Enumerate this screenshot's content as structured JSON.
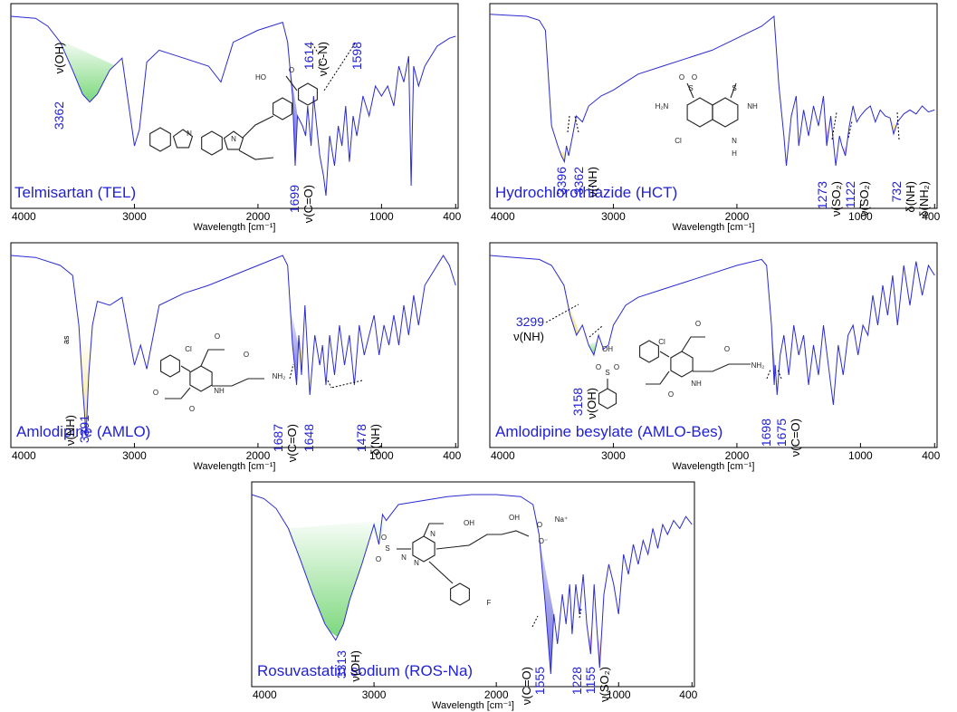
{
  "chart_data": [
    {
      "type": "line",
      "title": "Telmisartan (TEL)",
      "xlabel": "Wavelength [cm⁻¹]",
      "xlim": [
        4000,
        380
      ],
      "xticks": [
        "4000",
        "3000",
        "2000",
        "1000",
        "400"
      ],
      "color": "#2b2bd1",
      "y_scale": "transmittance",
      "series": [
        {
          "x": [
            4000,
            3800,
            3700,
            3600,
            3500,
            3420,
            3362,
            3300,
            3200,
            3100,
            3000,
            2960,
            2900,
            2800,
            2600,
            2400,
            2300,
            2200,
            2000,
            1900,
            1800,
            1760,
            1720,
            1699,
            1680,
            1640,
            1614,
            1598,
            1570,
            1550,
            1500,
            1470,
            1450,
            1420,
            1380,
            1350,
            1320,
            1290,
            1260,
            1230,
            1200,
            1150,
            1100,
            1050,
            1000,
            950,
            900,
            860,
            820,
            780,
            760,
            740,
            700,
            650,
            600,
            550,
            500,
            450,
            400
          ],
          "y": [
            0.95,
            0.94,
            0.9,
            0.82,
            0.68,
            0.56,
            0.52,
            0.56,
            0.68,
            0.74,
            0.3,
            0.38,
            0.72,
            0.78,
            0.74,
            0.7,
            0.62,
            0.82,
            0.88,
            0.9,
            0.92,
            0.82,
            0.55,
            0.2,
            0.45,
            0.4,
            0.35,
            0.5,
            0.3,
            0.55,
            0.25,
            0.15,
            0.05,
            0.35,
            0.2,
            0.4,
            0.3,
            0.5,
            0.22,
            0.45,
            0.35,
            0.55,
            0.45,
            0.6,
            0.55,
            0.6,
            0.5,
            0.7,
            0.62,
            0.75,
            0.1,
            0.7,
            0.6,
            0.7,
            0.75,
            0.8,
            0.82,
            0.84,
            0.85
          ]
        }
      ],
      "annotations": [
        {
          "peak": "3362",
          "assignment": "ν(OH)",
          "x": 3362
        },
        {
          "peak": "1699",
          "assignment": "ν(C=O)",
          "x": 1699
        },
        {
          "peak": "1614",
          "assignment": "ν(C-N)",
          "x": 1614
        },
        {
          "peak": "1598",
          "assignment": "",
          "x": 1598
        }
      ]
    },
    {
      "type": "line",
      "title": "Hydrochlorothiazide (HCT)",
      "xlabel": "Wavelength [cm⁻¹]",
      "xlim": [
        4000,
        380
      ],
      "xticks": [
        "4000",
        "3000",
        "2000",
        "1000",
        "400"
      ],
      "color": "#2b2bd1",
      "y_scale": "transmittance",
      "series": [
        {
          "x": [
            4000,
            3700,
            3600,
            3550,
            3500,
            3450,
            3420,
            3396,
            3380,
            3362,
            3330,
            3300,
            3250,
            3200,
            3100,
            3000,
            2900,
            2800,
            2600,
            2400,
            2200,
            2000,
            1800,
            1700,
            1660,
            1620,
            1600,
            1560,
            1520,
            1500,
            1460,
            1420,
            1380,
            1340,
            1300,
            1273,
            1240,
            1200,
            1170,
            1150,
            1122,
            1090,
            1060,
            1030,
            1000,
            960,
            920,
            880,
            840,
            800,
            760,
            732,
            700,
            650,
            600,
            550,
            500,
            450,
            400
          ],
          "y": [
            0.96,
            0.95,
            0.93,
            0.88,
            0.4,
            0.3,
            0.25,
            0.22,
            0.3,
            0.25,
            0.35,
            0.45,
            0.42,
            0.5,
            0.55,
            0.58,
            0.62,
            0.66,
            0.7,
            0.74,
            0.78,
            0.84,
            0.9,
            0.95,
            0.6,
            0.35,
            0.2,
            0.45,
            0.55,
            0.3,
            0.48,
            0.35,
            0.5,
            0.4,
            0.55,
            0.3,
            0.45,
            0.2,
            0.35,
            0.3,
            0.25,
            0.4,
            0.5,
            0.42,
            0.45,
            0.48,
            0.5,
            0.42,
            0.48,
            0.45,
            0.44,
            0.36,
            0.42,
            0.46,
            0.48,
            0.46,
            0.5,
            0.47,
            0.48
          ]
        }
      ],
      "annotations": [
        {
          "peak": "3396",
          "assignment": "",
          "x": 3396
        },
        {
          "peak": "3362",
          "assignment": "ν(NH)",
          "x": 3362
        },
        {
          "peak": "1273",
          "assignment": "ν(SO₂)",
          "x": 1273
        },
        {
          "peak": "1122",
          "assignment": "ν(SO₂)",
          "x": 1122
        },
        {
          "peak": "732",
          "assignment": "δ(NH)",
          "x": 732
        },
        {
          "peak": "",
          "assignment": "δ(NH₂)",
          "x": 600
        }
      ]
    },
    {
      "type": "line",
      "title": "Amlodipine (AMLO)",
      "xlabel": "Wavelength [cm⁻¹]",
      "xlim": [
        4000,
        380
      ],
      "xticks": [
        "4000",
        "3000",
        "2000",
        "1000",
        "400"
      ],
      "color": "#2b2bd1",
      "y_scale": "transmittance",
      "series": [
        {
          "x": [
            4000,
            3800,
            3600,
            3500,
            3450,
            3420,
            3391,
            3370,
            3340,
            3300,
            3200,
            3100,
            3000,
            2950,
            2900,
            2800,
            2600,
            2400,
            2200,
            2000,
            1800,
            1760,
            1720,
            1687,
            1670,
            1648,
            1620,
            1580,
            1540,
            1500,
            1478,
            1450,
            1420,
            1380,
            1340,
            1300,
            1260,
            1220,
            1180,
            1140,
            1100,
            1060,
            1020,
            980,
            940,
            900,
            860,
            820,
            780,
            740,
            700,
            650,
            600,
            550,
            500,
            450,
            400
          ],
          "y": [
            0.95,
            0.94,
            0.9,
            0.85,
            0.6,
            0.3,
            0.05,
            0.35,
            0.6,
            0.72,
            0.7,
            0.74,
            0.4,
            0.5,
            0.38,
            0.7,
            0.76,
            0.8,
            0.85,
            0.9,
            0.95,
            0.9,
            0.5,
            0.3,
            0.55,
            0.35,
            0.7,
            0.25,
            0.55,
            0.4,
            0.5,
            0.3,
            0.55,
            0.35,
            0.6,
            0.4,
            0.55,
            0.3,
            0.6,
            0.45,
            0.55,
            0.65,
            0.45,
            0.6,
            0.5,
            0.65,
            0.5,
            0.7,
            0.55,
            0.75,
            0.6,
            0.8,
            0.85,
            0.9,
            0.95,
            0.9,
            0.8
          ]
        }
      ],
      "annotations": [
        {
          "peak": "3391",
          "assignment": "ν(NH)",
          "superscript": "as",
          "x": 3391
        },
        {
          "peak": "1687",
          "assignment": "ν(C=O)",
          "x": 1687
        },
        {
          "peak": "1648",
          "assignment": "",
          "x": 1648
        },
        {
          "peak": "1478",
          "assignment": "δ(NH)",
          "x": 1478
        }
      ]
    },
    {
      "type": "line",
      "title": "Amlodipine besylate (AMLO-Bes)",
      "xlabel": "Wavelength [cm⁻¹]",
      "xlim": [
        4000,
        380
      ],
      "xticks": [
        "4000",
        "3000",
        "2000",
        "1000",
        "400"
      ],
      "color": "#2b2bd1",
      "y_scale": "transmittance",
      "series": [
        {
          "x": [
            4000,
            3800,
            3600,
            3500,
            3400,
            3350,
            3299,
            3250,
            3200,
            3158,
            3120,
            3080,
            3040,
            3000,
            2950,
            2900,
            2800,
            2600,
            2400,
            2200,
            2000,
            1800,
            1760,
            1720,
            1698,
            1690,
            1675,
            1650,
            1620,
            1580,
            1540,
            1500,
            1460,
            1420,
            1380,
            1340,
            1300,
            1260,
            1220,
            1180,
            1140,
            1100,
            1060,
            1020,
            980,
            940,
            900,
            860,
            820,
            780,
            740,
            700,
            650,
            600,
            550,
            500,
            450,
            400
          ],
          "y": [
            0.95,
            0.94,
            0.93,
            0.9,
            0.8,
            0.65,
            0.55,
            0.6,
            0.5,
            0.45,
            0.55,
            0.48,
            0.5,
            0.6,
            0.65,
            0.7,
            0.74,
            0.78,
            0.82,
            0.86,
            0.9,
            0.93,
            0.9,
            0.6,
            0.3,
            0.4,
            0.25,
            0.45,
            0.55,
            0.35,
            0.6,
            0.45,
            0.55,
            0.3,
            0.5,
            0.35,
            0.6,
            0.4,
            0.2,
            0.5,
            0.35,
            0.55,
            0.6,
            0.45,
            0.6,
            0.55,
            0.75,
            0.6,
            0.8,
            0.65,
            0.85,
            0.6,
            0.9,
            0.7,
            0.92,
            0.75,
            0.9,
            0.85
          ]
        }
      ],
      "annotations": [
        {
          "peak": "3299",
          "assignment": "ν(NH)",
          "x": 3299
        },
        {
          "peak": "3158",
          "assignment": "ν(OH)",
          "x": 3158
        },
        {
          "peak": "1698",
          "assignment": "",
          "x": 1698
        },
        {
          "peak": "1675",
          "assignment": "ν(C=O)",
          "x": 1675
        }
      ]
    },
    {
      "type": "line",
      "title": "Rosuvastatin sodium (ROS-Na)",
      "xlabel": "Wavelength [cm⁻¹]",
      "xlim": [
        4000,
        380
      ],
      "xticks": [
        "4000",
        "3000",
        "2000",
        "1000",
        "400"
      ],
      "color": "#2b2bd1",
      "y_scale": "transmittance",
      "series": [
        {
          "x": [
            4000,
            3900,
            3800,
            3700,
            3600,
            3500,
            3400,
            3313,
            3250,
            3200,
            3100,
            3000,
            2960,
            2930,
            2900,
            2800,
            2600,
            2400,
            2200,
            2000,
            1800,
            1700,
            1650,
            1600,
            1555,
            1530,
            1500,
            1460,
            1430,
            1400,
            1380,
            1350,
            1320,
            1290,
            1260,
            1228,
            1200,
            1180,
            1155,
            1120,
            1080,
            1040,
            1000,
            960,
            920,
            880,
            840,
            800,
            760,
            720,
            680,
            640,
            600,
            550,
            500,
            450,
            400
          ],
          "y": [
            0.95,
            0.93,
            0.88,
            0.78,
            0.62,
            0.45,
            0.3,
            0.22,
            0.3,
            0.42,
            0.6,
            0.8,
            0.7,
            0.85,
            0.82,
            0.9,
            0.92,
            0.94,
            0.95,
            0.95,
            0.94,
            0.9,
            0.75,
            0.4,
            0.05,
            0.35,
            0.2,
            0.45,
            0.3,
            0.5,
            0.25,
            0.5,
            0.35,
            0.55,
            0.3,
            0.15,
            0.5,
            0.3,
            0.08,
            0.45,
            0.6,
            0.5,
            0.35,
            0.65,
            0.55,
            0.7,
            0.6,
            0.72,
            0.65,
            0.78,
            0.68,
            0.8,
            0.75,
            0.82,
            0.78,
            0.84,
            0.8
          ]
        }
      ],
      "annotations": [
        {
          "peak": "3313",
          "assignment": "ν(OH)",
          "x": 3313
        },
        {
          "peak": "1555",
          "assignment": "ν(C=O)",
          "x": 1555
        },
        {
          "peak": "1228",
          "assignment": "",
          "x": 1228
        },
        {
          "peak": "1155",
          "assignment": "ν(SO₂)",
          "x": 1155
        }
      ]
    }
  ],
  "structure_labels": {
    "tel": [
      "HO",
      "O",
      "N",
      "N"
    ],
    "hct": [
      "H₂N",
      "O",
      "S",
      "O",
      "S",
      "NH",
      "Cl",
      "N",
      "H"
    ],
    "amlo": [
      "Cl",
      "O",
      "O",
      "O",
      "O",
      "NH₂",
      "NH"
    ],
    "bes": [
      "OH",
      "S",
      "O",
      "O",
      "Cl",
      "O",
      "O",
      "O",
      "NH₂",
      "NH"
    ],
    "ros": [
      "OH",
      "OH",
      "O",
      "O⁻",
      "Na⁺",
      "N",
      "N",
      "N",
      "S",
      "O",
      "O",
      "F"
    ]
  }
}
